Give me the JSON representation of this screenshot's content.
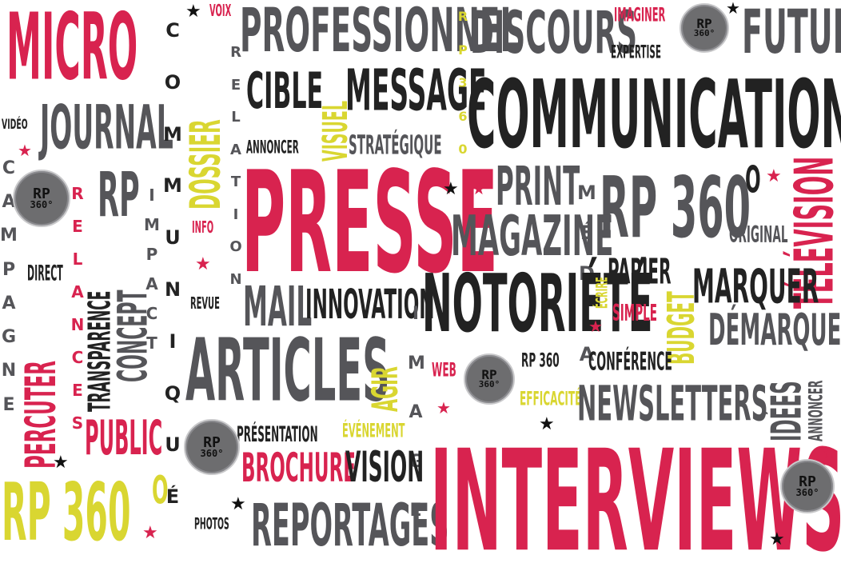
{
  "words": {
    "micro": "MICRO",
    "journal": "JOURNAL",
    "video": "VIDÉO",
    "campagne": "CAMPAGNE",
    "relances": "RELANCES",
    "rp": "RP",
    "impact": "IMPACT",
    "direct": "DIRECT",
    "transparence": "TRANSPARENCE",
    "concept": "CONCEPT",
    "percuter": "PERCUTER",
    "public": "PUBLIC",
    "rp360_big": "RP 360",
    "o": "O",
    "communique": "COMMUNIQUÉ",
    "dossier": "DOSSIER",
    "voix": "VOIX",
    "relation": "RELATION",
    "info": "INFO",
    "revue": "REVUE",
    "professionnel": "PROFESSIONNEL",
    "rp360_vert": "RP360",
    "cible": "CIBLE",
    "visuel": "VISUEL",
    "message": "MESSAGE",
    "annoncer": "ANNONCER",
    "strategique": "STRATÉGIQUE",
    "presse": "PRESSE",
    "mail": "MAIL",
    "innovation": "INNOVATION",
    "image": "IMAGE",
    "articles": "ARTICLES",
    "agir": "AGIR",
    "presentation": "PRÉSENTATION",
    "evenement": "ÉVÉNEMENT",
    "brochure": "BROCHURE",
    "vision": "VISION",
    "reportages": "REPORTAGES",
    "photos": "PHOTOS",
    "discours": "DISCOURS",
    "imaginer": "IMAGINER",
    "expertise": "EXPERTISE",
    "futur": "FUTUR",
    "communication": "COMMUNICATION",
    "print": "PRINT",
    "magazine": "MAGAZINE",
    "media": "MÉDIA",
    "rp360_mid": "RP 360",
    "television": "TÉLÉVISION",
    "original": "ORIGINAL",
    "notoriete": "NOTORIÉTÉ",
    "ecrire": "ÉCRIRE",
    "papier": "PAPIER",
    "budget": "BUDGET",
    "marquer": "MARQUER",
    "simple": "SIMPLE",
    "demarquer": "DÉMARQUER",
    "web": "WEB",
    "rp360_small": "RP 360",
    "o_small": "O",
    "conference": "CONFÉRENCE",
    "efficacite": "EFFICACITÉ",
    "newsletters": "NEWSLETTERS",
    "idees": "IDÉES",
    "annoncer2": "ANNONCER",
    "interviews": "INTERVIEWS"
  },
  "logo": {
    "line1": "RP",
    "line2": "360°"
  },
  "star_glyph": "★",
  "colors": {
    "red": "#d8234f",
    "grey": "#555559",
    "black": "#222222",
    "yellow": "#d9d631"
  }
}
